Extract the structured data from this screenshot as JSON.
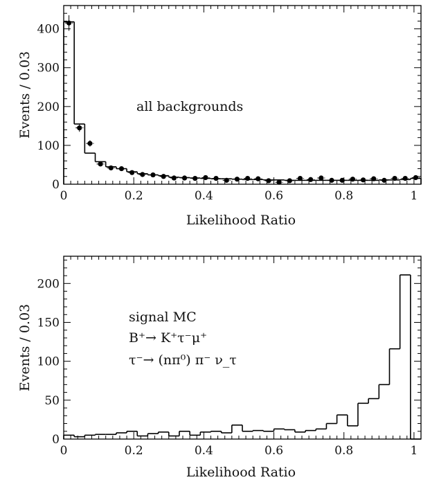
{
  "chart_data": [
    {
      "type": "histogram",
      "annotation": [
        "all backgrounds"
      ],
      "xlabel": "Likelihood Ratio",
      "ylabel": "Events / 0.03",
      "xlim": [
        0,
        1.02
      ],
      "ylim": [
        0,
        460
      ],
      "x_ticks": [
        0,
        0.2,
        0.4,
        0.6,
        0.8,
        1
      ],
      "x_tick_labels": [
        "0",
        "0.2",
        "0.4",
        "0.6",
        "0.8",
        "1"
      ],
      "y_ticks": [
        0,
        100,
        200,
        300,
        400
      ],
      "y_tick_labels": [
        "0",
        "100",
        "200",
        "300",
        "400"
      ],
      "bin_width": 0.03,
      "series": [
        {
          "style": "step",
          "values": [
            418,
            155,
            80,
            58,
            45,
            40,
            32,
            27,
            24,
            22,
            18,
            17,
            16,
            15,
            14,
            14,
            13,
            12,
            12,
            11,
            11,
            10,
            10,
            10,
            10,
            10,
            10,
            10,
            10,
            10,
            11,
            11,
            12,
            15
          ]
        },
        {
          "style": "points",
          "values": [
            415,
            145,
            105,
            52,
            42,
            40,
            30,
            25,
            24,
            20,
            16,
            16,
            15,
            17,
            15,
            10,
            13,
            15,
            14,
            9,
            5,
            9,
            15,
            12,
            16,
            10,
            10,
            13,
            11,
            14,
            10,
            15,
            15,
            17
          ],
          "errors": [
            20,
            10,
            8,
            6,
            5,
            5,
            4,
            4,
            4,
            4,
            3,
            3,
            3,
            3,
            3,
            3,
            3,
            3,
            3,
            3,
            3,
            3,
            3,
            3,
            3,
            3,
            3,
            3,
            3,
            3,
            3,
            3,
            3,
            3
          ]
        }
      ]
    },
    {
      "type": "histogram",
      "annotation": [
        "signal MC",
        "B⁺→ K⁺τ⁻μ⁺",
        "τ⁻→ (nπ⁰) π⁻ ν_τ"
      ],
      "xlabel": "Likelihood Ratio",
      "ylabel": "Events / 0.03",
      "xlim": [
        0,
        1.02
      ],
      "ylim": [
        0,
        235
      ],
      "x_ticks": [
        0,
        0.2,
        0.4,
        0.6,
        0.8,
        1
      ],
      "x_tick_labels": [
        "0",
        "0.2",
        "0.4",
        "0.6",
        "0.8",
        "1"
      ],
      "y_ticks": [
        0,
        50,
        100,
        150,
        200
      ],
      "y_tick_labels": [
        "0",
        "50",
        "100",
        "150",
        "200"
      ],
      "bin_width": 0.03,
      "series": [
        {
          "style": "step",
          "values": [
            5,
            3,
            5,
            6,
            6,
            8,
            10,
            4,
            7,
            9,
            4,
            10,
            5,
            9,
            10,
            8,
            18,
            10,
            11,
            10,
            13,
            12,
            9,
            11,
            13,
            20,
            31,
            17,
            46,
            52,
            70,
            116,
            211,
            0
          ]
        }
      ]
    }
  ]
}
